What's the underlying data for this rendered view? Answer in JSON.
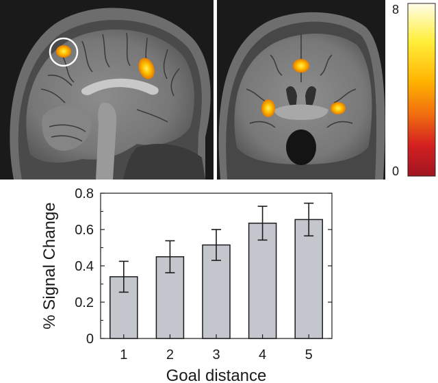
{
  "colorbar": {
    "max_label": "8",
    "min_label": "0",
    "colors": [
      "#fffde8",
      "#ffee3a",
      "#ffb400",
      "#f06a10",
      "#d42020",
      "#a01520"
    ]
  },
  "brain_images": {
    "left": {
      "view": "sagittal",
      "background": "#1a1a1a",
      "roi_circle_color": "#ffffff"
    },
    "right": {
      "view": "coronal",
      "background": "#1a1a1a"
    }
  },
  "chart_data": {
    "type": "bar",
    "categories": [
      "1",
      "2",
      "3",
      "4",
      "5"
    ],
    "values": [
      0.34,
      0.45,
      0.515,
      0.635,
      0.655
    ],
    "errors": [
      0.085,
      0.088,
      0.085,
      0.093,
      0.09
    ],
    "yticks": [
      "0",
      "0.2",
      "0.4",
      "0.6",
      "0.8"
    ],
    "ylim": [
      0,
      0.8
    ],
    "xlabel": "Goal distance",
    "ylabel": "% Signal Change",
    "bar_color": "#c3c7cd",
    "grid": false
  }
}
